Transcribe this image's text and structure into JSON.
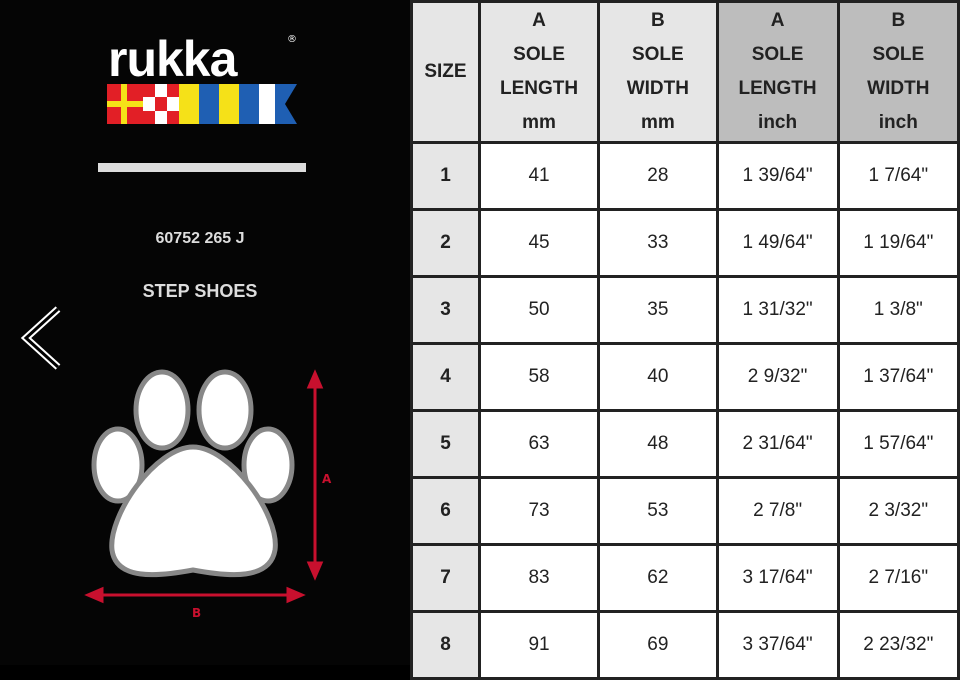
{
  "brand": {
    "logo_text": "rukka",
    "registered": "®",
    "flag_colors": [
      "#e21f26",
      "#f5e118",
      "#1f5fb3",
      "#ffffff"
    ]
  },
  "product": {
    "code": "60752 265 J",
    "name": "STEP SHOES"
  },
  "diagram": {
    "label_a": "A",
    "label_b": "B",
    "arrow_color": "#c8102e"
  },
  "nav": {
    "prev_icon": "chevron-left-icon"
  },
  "table": {
    "headers": [
      {
        "lines": [
          "SIZE"
        ]
      },
      {
        "lines": [
          "A",
          "SOLE",
          "LENGTH",
          "mm"
        ]
      },
      {
        "lines": [
          "B",
          "SOLE",
          "WIDTH",
          "mm"
        ]
      },
      {
        "lines": [
          "A",
          "SOLE",
          "LENGTH",
          "inch"
        ]
      },
      {
        "lines": [
          "B",
          "SOLE",
          "WIDTH",
          "inch"
        ]
      }
    ],
    "rows": [
      [
        "1",
        "41",
        "28",
        "1 39/64\"",
        "1 7/64\""
      ],
      [
        "2",
        "45",
        "33",
        "1 49/64\"",
        "1 19/64\""
      ],
      [
        "3",
        "50",
        "35",
        "1 31/32\"",
        "1 3/8\""
      ],
      [
        "4",
        "58",
        "40",
        "2 9/32\"",
        "1 37/64\""
      ],
      [
        "5",
        "63",
        "48",
        "2 31/64\"",
        "1 57/64\""
      ],
      [
        "6",
        "73",
        "53",
        "2 7/8\"",
        "2 3/32\""
      ],
      [
        "7",
        "83",
        "62",
        "3 17/64\"",
        "2 7/16\""
      ],
      [
        "8",
        "91",
        "69",
        "3 37/64\"",
        "2 23/32\""
      ]
    ]
  }
}
